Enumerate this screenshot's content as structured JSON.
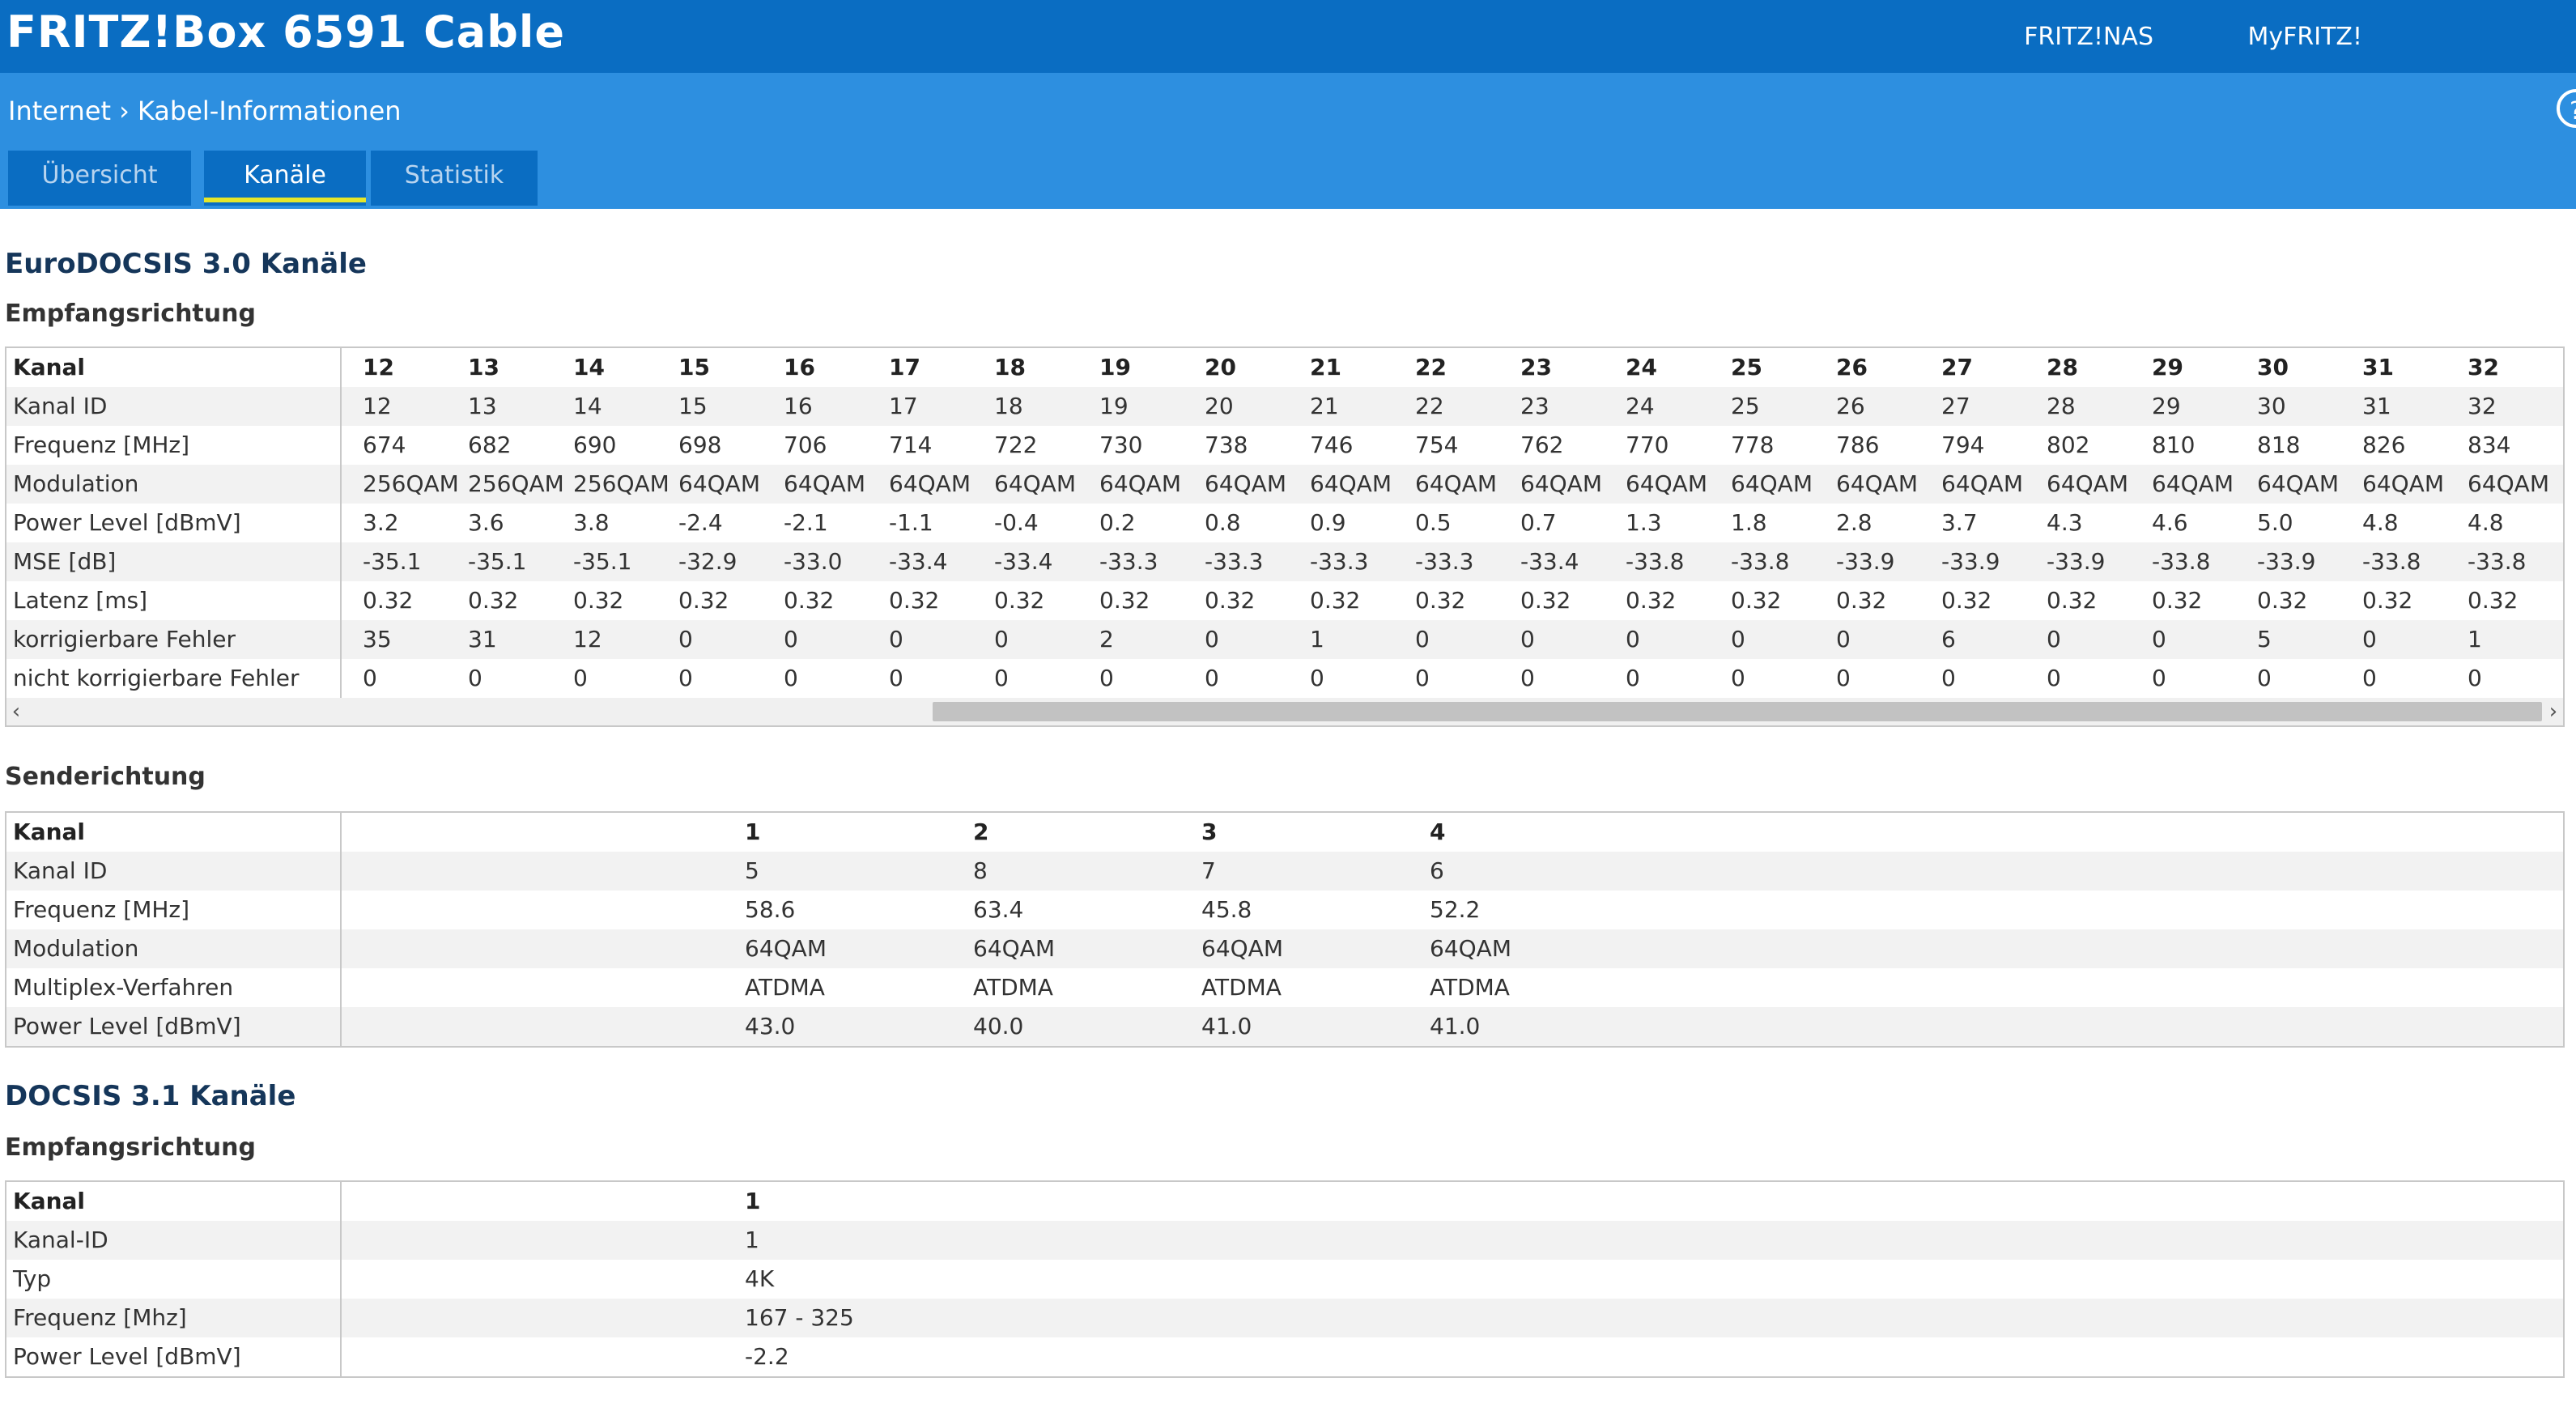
{
  "header": {
    "product": "FRITZ!Box 6591 Cable",
    "links": [
      "FRITZ!NAS",
      "MyFRITZ!"
    ],
    "accent": "#0a6dc2"
  },
  "breadcrumb": {
    "parent": "Internet",
    "current": "Kabel-Informationen"
  },
  "help_icon": "?",
  "tabs": [
    {
      "label": "Übersicht",
      "active": false
    },
    {
      "label": "Kanäle",
      "active": true
    },
    {
      "label": "Statistik",
      "active": false
    }
  ],
  "docsis30": {
    "title": "EuroDOCSIS 3.0 Kanäle",
    "downstream": {
      "title": "Empfangsrichtung",
      "rows": [
        {
          "label": "Kanal",
          "values": [
            "12",
            "13",
            "14",
            "15",
            "16",
            "17",
            "18",
            "19",
            "20",
            "21",
            "22",
            "23",
            "24",
            "25",
            "26",
            "27",
            "28",
            "29",
            "30",
            "31",
            "32"
          ]
        },
        {
          "label": "Kanal ID",
          "values": [
            "12",
            "13",
            "14",
            "15",
            "16",
            "17",
            "18",
            "19",
            "20",
            "21",
            "22",
            "23",
            "24",
            "25",
            "26",
            "27",
            "28",
            "29",
            "30",
            "31",
            "32"
          ]
        },
        {
          "label": "Frequenz [MHz]",
          "values": [
            "674",
            "682",
            "690",
            "698",
            "706",
            "714",
            "722",
            "730",
            "738",
            "746",
            "754",
            "762",
            "770",
            "778",
            "786",
            "794",
            "802",
            "810",
            "818",
            "826",
            "834"
          ]
        },
        {
          "label": "Modulation",
          "values": [
            "256QAM",
            "256QAM",
            "256QAM",
            "64QAM",
            "64QAM",
            "64QAM",
            "64QAM",
            "64QAM",
            "64QAM",
            "64QAM",
            "64QAM",
            "64QAM",
            "64QAM",
            "64QAM",
            "64QAM",
            "64QAM",
            "64QAM",
            "64QAM",
            "64QAM",
            "64QAM",
            "64QAM"
          ]
        },
        {
          "label": "Power Level [dBmV]",
          "values": [
            "3.2",
            "3.6",
            "3.8",
            "-2.4",
            "-2.1",
            "-1.1",
            "-0.4",
            "0.2",
            "0.8",
            "0.9",
            "0.5",
            "0.7",
            "1.3",
            "1.8",
            "2.8",
            "3.7",
            "4.3",
            "4.6",
            "5.0",
            "4.8",
            "4.8"
          ]
        },
        {
          "label": "MSE [dB]",
          "values": [
            "-35.1",
            "-35.1",
            "-35.1",
            "-32.9",
            "-33.0",
            "-33.4",
            "-33.4",
            "-33.3",
            "-33.3",
            "-33.3",
            "-33.3",
            "-33.4",
            "-33.8",
            "-33.8",
            "-33.9",
            "-33.9",
            "-33.9",
            "-33.8",
            "-33.9",
            "-33.8",
            "-33.8"
          ]
        },
        {
          "label": "Latenz [ms]",
          "values": [
            "0.32",
            "0.32",
            "0.32",
            "0.32",
            "0.32",
            "0.32",
            "0.32",
            "0.32",
            "0.32",
            "0.32",
            "0.32",
            "0.32",
            "0.32",
            "0.32",
            "0.32",
            "0.32",
            "0.32",
            "0.32",
            "0.32",
            "0.32",
            "0.32"
          ]
        },
        {
          "label": "korrigierbare Fehler",
          "values": [
            "35",
            "31",
            "12",
            "0",
            "0",
            "0",
            "0",
            "2",
            "0",
            "1",
            "0",
            "0",
            "0",
            "0",
            "0",
            "6",
            "0",
            "0",
            "5",
            "0",
            "1"
          ]
        },
        {
          "label": "nicht korrigierbare Fehler",
          "values": [
            "0",
            "0",
            "0",
            "0",
            "0",
            "0",
            "0",
            "0",
            "0",
            "0",
            "0",
            "0",
            "0",
            "0",
            "0",
            "0",
            "0",
            "0",
            "0",
            "0",
            "0"
          ]
        }
      ],
      "scroll_left": "‹",
      "scroll_right": "›"
    },
    "upstream": {
      "title": "Senderichtung",
      "rows": [
        {
          "label": "Kanal",
          "values": [
            "1",
            "2",
            "3",
            "4"
          ]
        },
        {
          "label": "Kanal ID",
          "values": [
            "5",
            "8",
            "7",
            "6"
          ]
        },
        {
          "label": "Frequenz [MHz]",
          "values": [
            "58.6",
            "63.4",
            "45.8",
            "52.2"
          ]
        },
        {
          "label": "Modulation",
          "values": [
            "64QAM",
            "64QAM",
            "64QAM",
            "64QAM"
          ]
        },
        {
          "label": "Multiplex-Verfahren",
          "values": [
            "ATDMA",
            "ATDMA",
            "ATDMA",
            "ATDMA"
          ]
        },
        {
          "label": "Power Level [dBmV]",
          "values": [
            "43.0",
            "40.0",
            "41.0",
            "41.0"
          ]
        }
      ]
    }
  },
  "docsis31": {
    "title": "DOCSIS 3.1 Kanäle",
    "downstream": {
      "title": "Empfangsrichtung",
      "rows": [
        {
          "label": "Kanal",
          "values": [
            "1"
          ]
        },
        {
          "label": "Kanal-ID",
          "values": [
            "1"
          ]
        },
        {
          "label": "Typ",
          "values": [
            "4K"
          ]
        },
        {
          "label": "Frequenz [Mhz]",
          "values": [
            "167 - 325"
          ]
        },
        {
          "label": "Power Level [dBmV]",
          "values": [
            "-2.2"
          ]
        }
      ]
    }
  }
}
